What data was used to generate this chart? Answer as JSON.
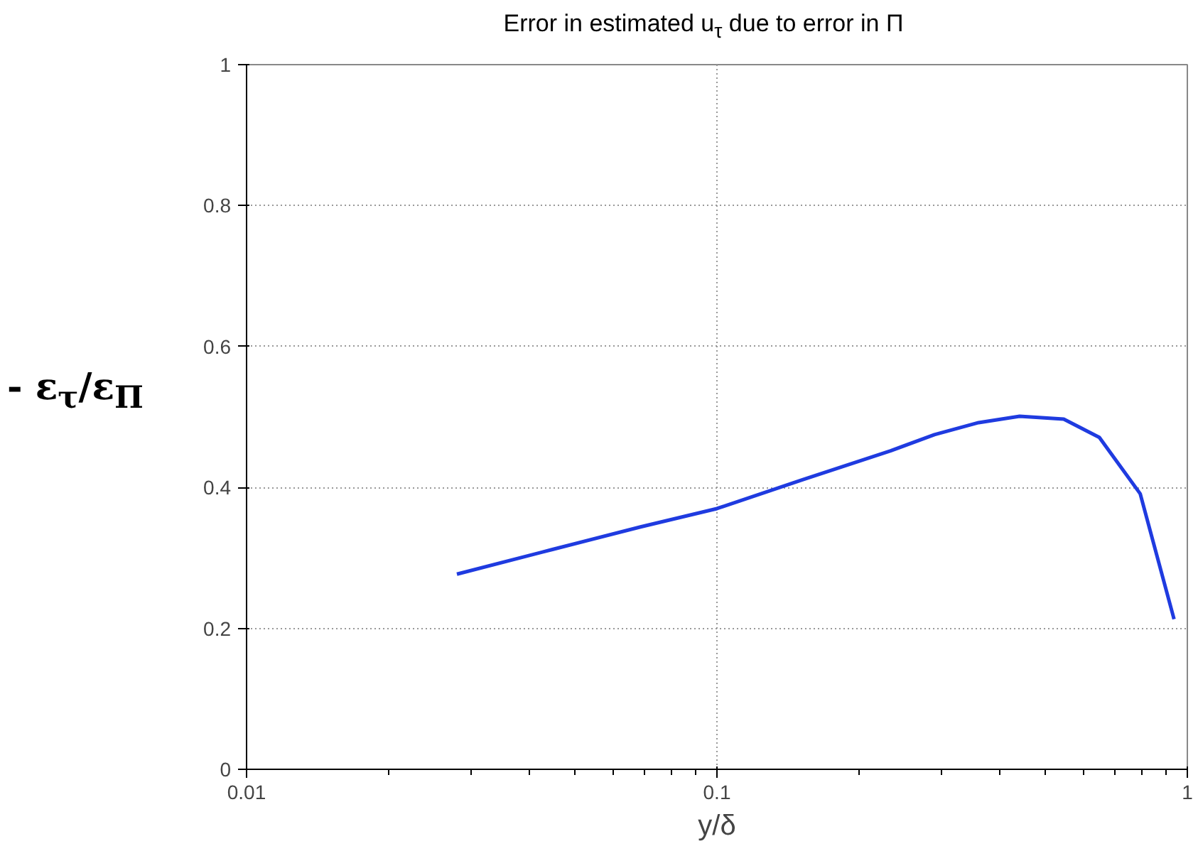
{
  "chart_data": {
    "type": "line",
    "title": "Error in estimated u$_{τ}$ due to error in Π",
    "xlabel": "y/δ",
    "ylabel": "- ε$_{τ}$/ε$_{Π}$",
    "x": [
      0.028,
      0.0447,
      0.0688,
      0.1,
      0.152,
      0.234,
      0.29,
      0.36,
      0.44,
      0.546,
      0.65,
      0.794,
      0.937
    ],
    "series": [
      {
        "color": "#1f3be0",
        "values": [
          0.277,
          0.312,
          0.344,
          0.37,
          0.411,
          0.452,
          0.475,
          0.492,
          0.501,
          0.497,
          0.471,
          0.391,
          0.213
        ]
      }
    ],
    "log": "x",
    "xlim": [
      0.01,
      1
    ],
    "xticks": [
      0.01,
      0.1,
      1
    ],
    "ylim": [
      0,
      1
    ],
    "yticks": [
      0,
      0.2,
      0.4,
      0.6,
      0.8,
      1
    ],
    "grid": true,
    "marker": "none",
    "line_style": "solid"
  }
}
